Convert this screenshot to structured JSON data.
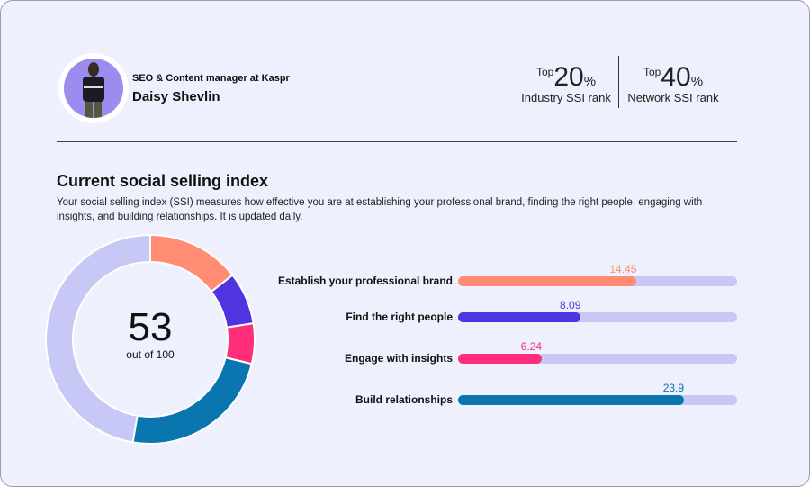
{
  "profile": {
    "role": "SEO & Content manager at Kaspr",
    "name": "Daisy Shevlin"
  },
  "ranks": [
    {
      "prefix": "Top",
      "value": "20",
      "unit": "%",
      "label": "Industry SSI rank"
    },
    {
      "prefix": "Top",
      "value": "40",
      "unit": "%",
      "label": "Network SSI rank"
    }
  ],
  "section": {
    "title": "Current social selling index",
    "description": "Your social selling index (SSI) measures how effective you are at establishing your professional brand, finding the right people, engaging with insights, and building relationships. It is updated daily."
  },
  "score": {
    "value": "53",
    "subtitle": "out of 100",
    "max": 100,
    "remainder_color": "#c8c8f6"
  },
  "components": [
    {
      "label": "Establish your professional brand",
      "value": "14.45",
      "fill_percent": 64,
      "color": "#ff8c73"
    },
    {
      "label": "Find the right people",
      "value": "8.09",
      "fill_percent": 44,
      "color": "#4f35e0"
    },
    {
      "label": "Engage with insights",
      "value": "6.24",
      "fill_percent": 30,
      "color": "#ff2d7a"
    },
    {
      "label": "Build relationships",
      "value": "23.9",
      "fill_percent": 81,
      "color": "#0a76b0"
    }
  ]
}
